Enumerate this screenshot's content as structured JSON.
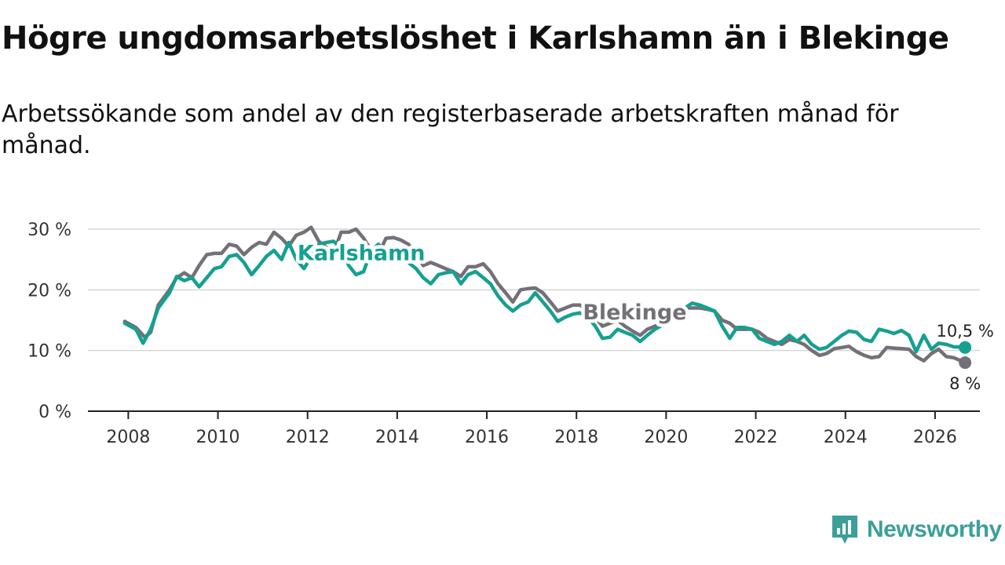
{
  "title": "Högre ungdomsarbetslöshet i Karlshamn än i Blekinge",
  "subtitle": "Arbetssökande som andel av den registerbaserade arbetskraften månad för månad.",
  "brand": {
    "name": "Newsworthy",
    "icon": "newsworthy-logo-icon",
    "color": "#3c9f9a"
  },
  "chart_data": {
    "type": "line",
    "title": "Högre ungdomsarbetslöshet i Karlshamn än i Blekinge",
    "subtitle": "Arbetssökande som andel av den registerbaserade arbetskraften månad för månad.",
    "xlabel": "",
    "ylabel": "",
    "xlim": [
      2007.1,
      2027.0
    ],
    "ylim": [
      0,
      30
    ],
    "y_ticks": [
      0,
      10,
      20,
      30
    ],
    "y_tick_labels": [
      "0 %",
      "10 %",
      "20 %",
      "30 %"
    ],
    "x_ticks": [
      2008,
      2010,
      2012,
      2014,
      2016,
      2018,
      2020,
      2022,
      2024,
      2026
    ],
    "x_tick_labels": [
      "2008",
      "2010",
      "2012",
      "2014",
      "2016",
      "2018",
      "2020",
      "2022",
      "2024",
      "2026"
    ],
    "grid": true,
    "legend": "inline labels",
    "series": [
      {
        "name": "Blekinge",
        "color": "#737177",
        "points": [
          [
            2007.92,
            14.8
          ],
          [
            2008.17,
            13.8
          ],
          [
            2008.37,
            12.2
          ],
          [
            2008.5,
            13.0
          ],
          [
            2008.67,
            17.5
          ],
          [
            2008.92,
            20.0
          ],
          [
            2009.08,
            22.0
          ],
          [
            2009.25,
            22.8
          ],
          [
            2009.42,
            22.0
          ],
          [
            2009.58,
            24.0
          ],
          [
            2009.75,
            25.8
          ],
          [
            2009.92,
            26.0
          ],
          [
            2010.08,
            26.0
          ],
          [
            2010.25,
            27.5
          ],
          [
            2010.42,
            27.2
          ],
          [
            2010.58,
            25.8
          ],
          [
            2010.75,
            27.0
          ],
          [
            2010.92,
            27.8
          ],
          [
            2011.08,
            27.5
          ],
          [
            2011.25,
            29.5
          ],
          [
            2011.42,
            28.5
          ],
          [
            2011.58,
            27.2
          ],
          [
            2011.75,
            29.0
          ],
          [
            2011.92,
            29.5
          ],
          [
            2012.08,
            30.3
          ],
          [
            2012.25,
            28.0
          ],
          [
            2012.42,
            27.0
          ],
          [
            2012.58,
            26.0
          ],
          [
            2012.75,
            29.5
          ],
          [
            2012.92,
            29.5
          ],
          [
            2013.08,
            30.0
          ],
          [
            2013.25,
            28.5
          ],
          [
            2013.42,
            26.5
          ],
          [
            2013.58,
            25.8
          ],
          [
            2013.75,
            28.5
          ],
          [
            2013.92,
            28.6
          ],
          [
            2014.08,
            28.2
          ],
          [
            2014.25,
            27.5
          ],
          [
            2014.42,
            26.0
          ],
          [
            2014.58,
            24.0
          ],
          [
            2014.75,
            24.5
          ],
          [
            2014.92,
            24.0
          ],
          [
            2015.08,
            23.5
          ],
          [
            2015.25,
            23.0
          ],
          [
            2015.42,
            22.2
          ],
          [
            2015.58,
            23.8
          ],
          [
            2015.75,
            23.8
          ],
          [
            2015.92,
            24.3
          ],
          [
            2016.08,
            23.0
          ],
          [
            2016.25,
            21.0
          ],
          [
            2016.42,
            19.5
          ],
          [
            2016.58,
            18.0
          ],
          [
            2016.75,
            20.0
          ],
          [
            2016.92,
            20.2
          ],
          [
            2017.08,
            20.3
          ],
          [
            2017.25,
            19.5
          ],
          [
            2017.42,
            18.0
          ],
          [
            2017.58,
            16.5
          ],
          [
            2017.75,
            17.0
          ],
          [
            2017.92,
            17.5
          ],
          [
            2018.08,
            17.5
          ],
          [
            2018.25,
            16.5
          ],
          [
            2018.42,
            15.5
          ],
          [
            2018.58,
            14.0
          ],
          [
            2018.75,
            14.5
          ],
          [
            2018.92,
            15.0
          ],
          [
            2019.08,
            14.0
          ],
          [
            2019.25,
            13.2
          ],
          [
            2019.42,
            12.5
          ],
          [
            2019.58,
            13.5
          ],
          [
            2019.75,
            14.0
          ],
          [
            2019.92,
            14.6
          ],
          [
            2020.08,
            15.0
          ],
          [
            2020.25,
            16.0
          ],
          [
            2020.42,
            17.0
          ],
          [
            2020.58,
            17.0
          ],
          [
            2020.75,
            17.0
          ],
          [
            2020.92,
            16.8
          ],
          [
            2021.08,
            16.5
          ],
          [
            2021.25,
            15.0
          ],
          [
            2021.42,
            14.5
          ],
          [
            2021.58,
            13.5
          ],
          [
            2021.75,
            13.5
          ],
          [
            2021.92,
            13.5
          ],
          [
            2022.08,
            13.0
          ],
          [
            2022.25,
            12.0
          ],
          [
            2022.42,
            11.5
          ],
          [
            2022.58,
            11.0
          ],
          [
            2022.75,
            11.8
          ],
          [
            2022.92,
            11.5
          ],
          [
            2023.08,
            11.0
          ],
          [
            2023.25,
            10.0
          ],
          [
            2023.42,
            9.2
          ],
          [
            2023.58,
            9.5
          ],
          [
            2023.75,
            10.3
          ],
          [
            2023.92,
            10.5
          ],
          [
            2024.08,
            10.7
          ],
          [
            2024.25,
            9.8
          ],
          [
            2024.42,
            9.2
          ],
          [
            2024.58,
            8.8
          ],
          [
            2024.75,
            9.0
          ],
          [
            2024.92,
            10.5
          ],
          [
            2025.08,
            10.4
          ],
          [
            2025.25,
            10.3
          ],
          [
            2025.42,
            10.2
          ],
          [
            2025.58,
            9.0
          ],
          [
            2025.75,
            8.3
          ],
          [
            2025.92,
            9.5
          ],
          [
            2026.08,
            10.2
          ],
          [
            2026.25,
            9.0
          ],
          [
            2026.42,
            8.8
          ],
          [
            2026.58,
            8.3
          ],
          [
            2026.67,
            8.0
          ]
        ],
        "last_value": 8.0,
        "last_label": "8 %"
      },
      {
        "name": "Karlshamn",
        "color": "#16a091",
        "points": [
          [
            2007.92,
            14.5
          ],
          [
            2008.17,
            13.5
          ],
          [
            2008.33,
            11.2
          ],
          [
            2008.5,
            13.5
          ],
          [
            2008.67,
            17.0
          ],
          [
            2008.92,
            19.5
          ],
          [
            2009.08,
            22.2
          ],
          [
            2009.25,
            21.5
          ],
          [
            2009.42,
            22.0
          ],
          [
            2009.58,
            20.5
          ],
          [
            2009.75,
            22.0
          ],
          [
            2009.92,
            23.5
          ],
          [
            2010.08,
            23.8
          ],
          [
            2010.25,
            25.5
          ],
          [
            2010.42,
            25.8
          ],
          [
            2010.58,
            24.5
          ],
          [
            2010.75,
            22.5
          ],
          [
            2010.92,
            24.0
          ],
          [
            2011.08,
            25.5
          ],
          [
            2011.25,
            26.5
          ],
          [
            2011.42,
            25.0
          ],
          [
            2011.58,
            27.8
          ],
          [
            2011.75,
            25.0
          ],
          [
            2011.92,
            23.5
          ],
          [
            2012.08,
            25.5
          ],
          [
            2012.25,
            27.5
          ],
          [
            2012.42,
            27.8
          ],
          [
            2012.58,
            28.0
          ],
          [
            2012.75,
            27.0
          ],
          [
            2012.92,
            24.0
          ],
          [
            2013.08,
            22.5
          ],
          [
            2013.25,
            23.0
          ],
          [
            2013.42,
            26.5
          ],
          [
            2013.58,
            27.5
          ],
          [
            2013.75,
            26.0
          ],
          [
            2013.92,
            25.0
          ],
          [
            2014.08,
            25.5
          ],
          [
            2014.25,
            24.5
          ],
          [
            2014.42,
            23.5
          ],
          [
            2014.58,
            22.0
          ],
          [
            2014.75,
            21.0
          ],
          [
            2014.92,
            22.5
          ],
          [
            2015.08,
            22.8
          ],
          [
            2015.25,
            23.0
          ],
          [
            2015.42,
            21.0
          ],
          [
            2015.58,
            22.5
          ],
          [
            2015.75,
            23.0
          ],
          [
            2015.92,
            22.0
          ],
          [
            2016.08,
            21.0
          ],
          [
            2016.25,
            19.0
          ],
          [
            2016.42,
            17.5
          ],
          [
            2016.58,
            16.5
          ],
          [
            2016.75,
            17.5
          ],
          [
            2016.92,
            18.0
          ],
          [
            2017.08,
            19.5
          ],
          [
            2017.25,
            18.0
          ],
          [
            2017.42,
            16.5
          ],
          [
            2017.58,
            14.8
          ],
          [
            2017.75,
            15.5
          ],
          [
            2017.92,
            16.0
          ],
          [
            2018.08,
            16.2
          ],
          [
            2018.25,
            15.5
          ],
          [
            2018.42,
            14.0
          ],
          [
            2018.58,
            12.0
          ],
          [
            2018.75,
            12.2
          ],
          [
            2018.92,
            13.5
          ],
          [
            2019.08,
            13.0
          ],
          [
            2019.25,
            12.5
          ],
          [
            2019.42,
            11.5
          ],
          [
            2019.58,
            12.5
          ],
          [
            2019.75,
            13.5
          ],
          [
            2019.92,
            14.2
          ],
          [
            2020.08,
            15.0
          ],
          [
            2020.25,
            16.0
          ],
          [
            2020.42,
            17.0
          ],
          [
            2020.58,
            17.8
          ],
          [
            2020.75,
            17.5
          ],
          [
            2020.92,
            17.0
          ],
          [
            2021.08,
            16.5
          ],
          [
            2021.25,
            14.0
          ],
          [
            2021.42,
            12.0
          ],
          [
            2021.58,
            13.8
          ],
          [
            2021.75,
            13.8
          ],
          [
            2021.92,
            13.5
          ],
          [
            2022.08,
            12.0
          ],
          [
            2022.25,
            11.5
          ],
          [
            2022.42,
            11.0
          ],
          [
            2022.58,
            11.5
          ],
          [
            2022.75,
            12.5
          ],
          [
            2022.92,
            11.5
          ],
          [
            2023.08,
            12.5
          ],
          [
            2023.25,
            11.0
          ],
          [
            2023.42,
            10.2
          ],
          [
            2023.58,
            10.5
          ],
          [
            2023.75,
            11.5
          ],
          [
            2023.92,
            12.5
          ],
          [
            2024.08,
            13.2
          ],
          [
            2024.25,
            13.0
          ],
          [
            2024.42,
            11.8
          ],
          [
            2024.58,
            11.5
          ],
          [
            2024.75,
            13.5
          ],
          [
            2024.92,
            13.2
          ],
          [
            2025.08,
            12.8
          ],
          [
            2025.25,
            13.3
          ],
          [
            2025.42,
            12.5
          ],
          [
            2025.58,
            9.8
          ],
          [
            2025.75,
            12.5
          ],
          [
            2025.92,
            10.2
          ],
          [
            2026.08,
            11.2
          ],
          [
            2026.25,
            11.0
          ],
          [
            2026.42,
            10.6
          ],
          [
            2026.67,
            10.5
          ]
        ],
        "last_value": 10.5,
        "last_label": "10,5 %"
      }
    ],
    "annotations": [
      {
        "text": "Karlshamn",
        "series": "Karlshamn",
        "x": 2013.2,
        "y": 24.9
      },
      {
        "text": "Blekinge",
        "series": "Blekinge",
        "x": 2019.3,
        "y": 15.1
      }
    ]
  }
}
